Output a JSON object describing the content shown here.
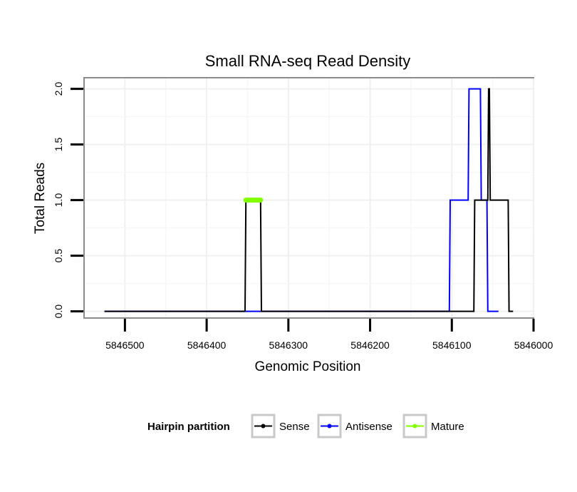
{
  "chart_data": {
    "type": "line",
    "title": "Small RNA-seq Read Density",
    "xlabel": "Genomic Position",
    "ylabel": "Total Reads",
    "x_reversed": true,
    "xlim": [
      5846550,
      5846000
    ],
    "ylim": [
      -0.06,
      2.1
    ],
    "x_ticks": [
      5846500,
      5846400,
      5846300,
      5846200,
      5846100,
      5846000
    ],
    "x_tick_labels": [
      "5846500",
      "5846400",
      "5846300",
      "5846200",
      "5846100",
      "5846000"
    ],
    "y_ticks": [
      0.0,
      0.5,
      1.0,
      1.5,
      2.0
    ],
    "y_tick_labels": [
      "0.0",
      "0.5",
      "1.0",
      "1.5",
      "2.0"
    ],
    "grid": true,
    "legend": {
      "title": "Hairpin partition",
      "position": "bottom",
      "entries": [
        {
          "name": "Sense",
          "color": "#000000"
        },
        {
          "name": "Antisense",
          "color": "#0000ff"
        },
        {
          "name": "Mature",
          "color": "#7fff00"
        }
      ]
    },
    "series": [
      {
        "name": "Sense",
        "color": "#000000",
        "x": [
          5846525,
          5846353,
          5846352,
          5846334,
          5846333,
          5846073,
          5846072,
          5846057,
          5846056,
          5846055,
          5846054,
          5846053,
          5846052,
          5846031,
          5846030,
          5846025
        ],
        "y": [
          0,
          0,
          1,
          1,
          0,
          0,
          1,
          1,
          1,
          2,
          2,
          1,
          1,
          1,
          0,
          0
        ]
      },
      {
        "name": "Antisense",
        "color": "#0000ff",
        "x": [
          5846525,
          5846103,
          5846102,
          5846080,
          5846079,
          5846065,
          5846064,
          5846057,
          5846056,
          5846044,
          5846043
        ],
        "y": [
          0,
          0,
          1,
          1,
          2,
          2,
          1,
          1,
          0,
          0,
          0
        ]
      },
      {
        "name": "Mature",
        "color": "#7fff00",
        "x": [
          5846352,
          5846334
        ],
        "y": [
          1,
          1
        ]
      }
    ]
  }
}
